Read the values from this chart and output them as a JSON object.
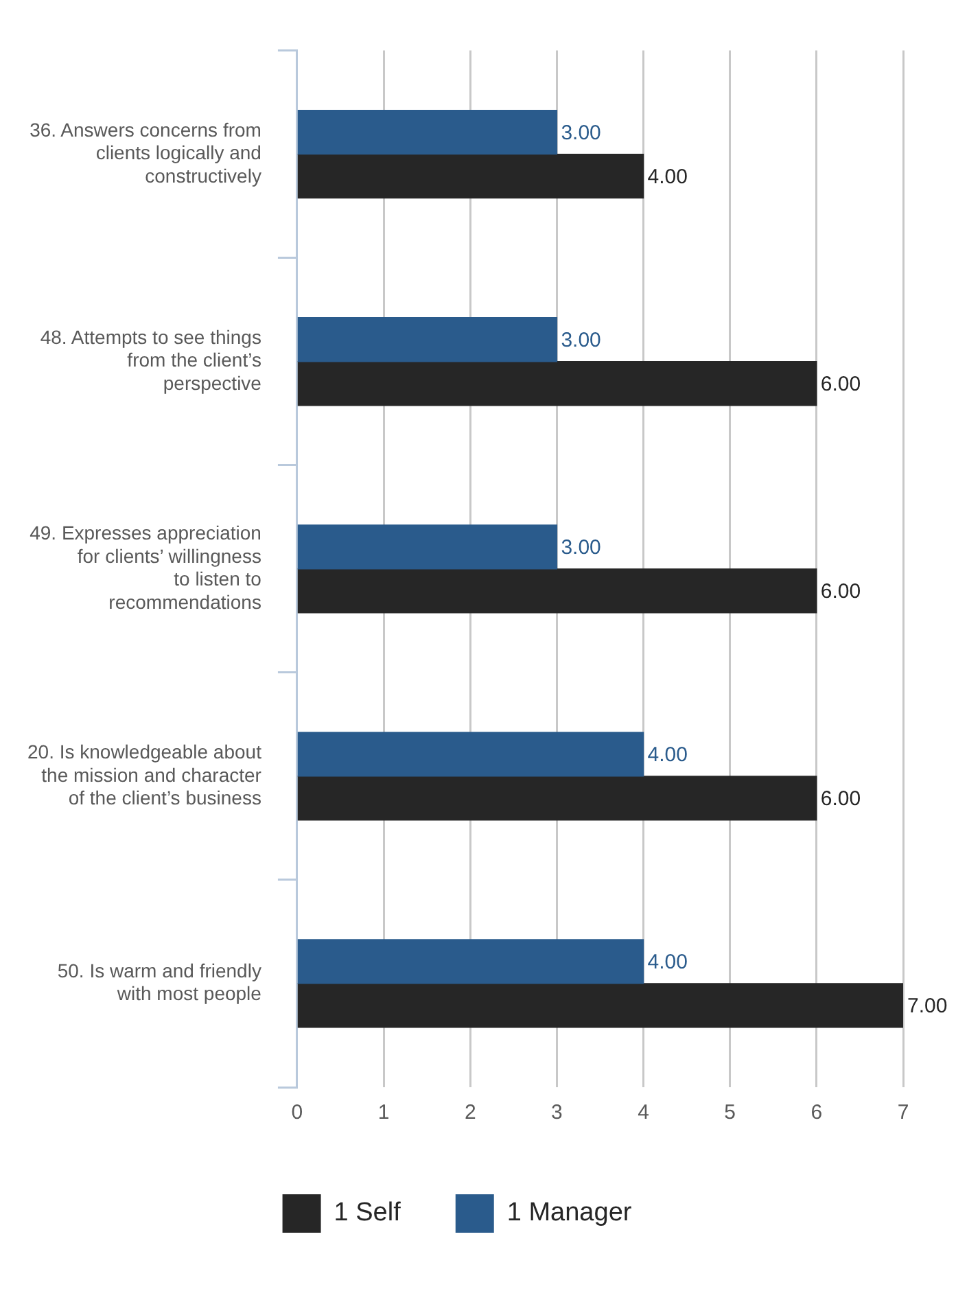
{
  "chart_data": {
    "type": "bar",
    "orientation": "horizontal",
    "categories": [
      "36. Answers concerns from clients logically and constructively",
      "48. Attempts to see things from the client’s perspective",
      "49. Expresses appreciation for clients’ willingness to listen to recommendations",
      "20. Is knowledgeable about the mission and character of the client’s business",
      "50. Is warm and friendly with most people"
    ],
    "series": [
      {
        "name": "1 Manager",
        "color": "#2a5b8c",
        "values": [
          3,
          3,
          3,
          4,
          4
        ],
        "value_labels": [
          "3.00",
          "3.00",
          "3.00",
          "4.00",
          "4.00"
        ]
      },
      {
        "name": "1 Self",
        "color": "#262626",
        "values": [
          4,
          6,
          6,
          6,
          7
        ],
        "value_labels": [
          "4.00",
          "6.00",
          "6.00",
          "6.00",
          "7.00"
        ]
      }
    ],
    "xlim": [
      0,
      7
    ],
    "xticks": [
      0,
      1,
      2,
      3,
      4,
      5,
      6,
      7
    ],
    "grid": "x",
    "legend": "bottom"
  }
}
